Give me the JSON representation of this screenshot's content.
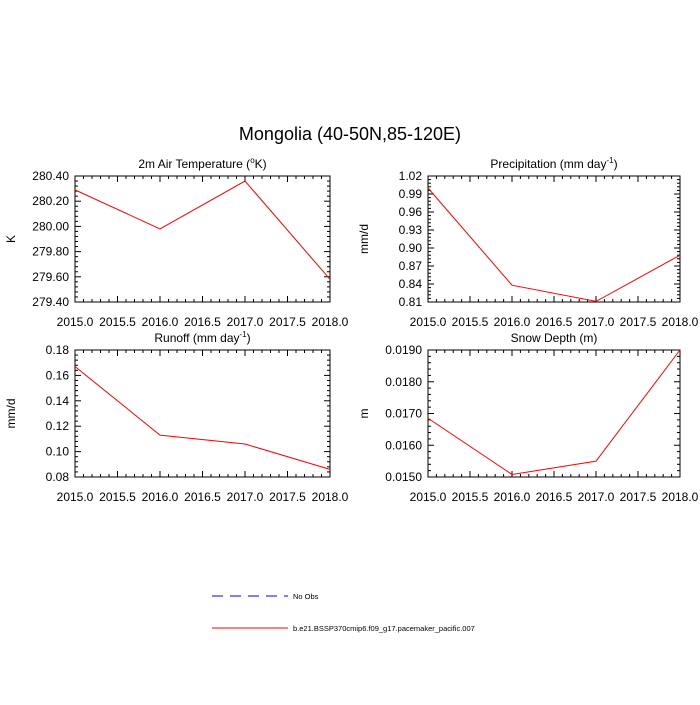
{
  "figure": {
    "title": "Mongolia (40-50N,85-120E)"
  },
  "legend": {
    "entries": [
      {
        "label": "No Obs",
        "color": "#0000ff",
        "style": "dashed"
      },
      {
        "label": "b.e21.BSSP370cmip6.f09_g17.pacemaker_pacific.007",
        "color": "#ff0000",
        "style": "solid"
      }
    ]
  },
  "chart_data": [
    {
      "type": "line",
      "title": "2m Air Temperature (",
      "title_sup": "o",
      "title_tail": "K)",
      "ylabel": "K",
      "x": [
        2015.0,
        2016.0,
        2017.0,
        2018.0
      ],
      "series": [
        {
          "values": [
            280.29,
            279.98,
            280.36,
            279.58
          ],
          "color": "#ff0000"
        }
      ],
      "xlim": [
        2015.0,
        2018.0
      ],
      "ylim": [
        279.4,
        280.4
      ],
      "xticks": [
        2015.0,
        2015.5,
        2016.0,
        2016.5,
        2017.0,
        2017.5,
        2018.0
      ],
      "xticklabels": [
        "2015.0",
        "2015.5",
        "2016.0",
        "2016.5",
        "2017.0",
        "2017.5",
        "2018.0"
      ],
      "yticks": [
        279.4,
        279.6,
        279.8,
        280.0,
        280.2,
        280.4
      ],
      "yticklabels": [
        "279.40",
        "279.60",
        "279.80",
        "280.00",
        "280.20",
        "280.40"
      ],
      "grid": false
    },
    {
      "type": "line",
      "title": "Precipitation (mm day",
      "title_sup": "-1",
      "title_tail": ")",
      "ylabel": "mm/d",
      "x": [
        2015.0,
        2016.0,
        2017.0,
        2018.0
      ],
      "series": [
        {
          "values": [
            1.0,
            0.838,
            0.811,
            0.888
          ],
          "color": "#ff0000"
        }
      ],
      "xlim": [
        2015.0,
        2018.0
      ],
      "ylim": [
        0.81,
        1.02
      ],
      "xticks": [
        2015.0,
        2015.5,
        2016.0,
        2016.5,
        2017.0,
        2017.5,
        2018.0
      ],
      "xticklabels": [
        "2015.0",
        "2015.5",
        "2016.0",
        "2016.5",
        "2017.0",
        "2017.5",
        "2018.0"
      ],
      "yticks": [
        0.81,
        0.84,
        0.87,
        0.9,
        0.93,
        0.96,
        0.99,
        1.02
      ],
      "yticklabels": [
        "0.81",
        "0.84",
        "0.87",
        "0.90",
        "0.93",
        "0.96",
        "0.99",
        "1.02"
      ],
      "grid": false
    },
    {
      "type": "line",
      "title": "Runoff (mm day",
      "title_sup": "-1",
      "title_tail": ")",
      "ylabel": "mm/d",
      "x": [
        2015.0,
        2016.0,
        2017.0,
        2018.0
      ],
      "series": [
        {
          "values": [
            0.167,
            0.113,
            0.106,
            0.086
          ],
          "color": "#ff0000"
        }
      ],
      "xlim": [
        2015.0,
        2018.0
      ],
      "ylim": [
        0.08,
        0.18
      ],
      "xticks": [
        2015.0,
        2015.5,
        2016.0,
        2016.5,
        2017.0,
        2017.5,
        2018.0
      ],
      "xticklabels": [
        "2015.0",
        "2015.5",
        "2016.0",
        "2016.5",
        "2017.0",
        "2017.5",
        "2018.0"
      ],
      "yticks": [
        0.08,
        0.1,
        0.12,
        0.14,
        0.16,
        0.18
      ],
      "yticklabels": [
        "0.08",
        "0.10",
        "0.12",
        "0.14",
        "0.16",
        "0.18"
      ],
      "grid": false
    },
    {
      "type": "line",
      "title": "Snow Depth (m)",
      "title_sup": "",
      "title_tail": "",
      "ylabel": "m",
      "x": [
        2015.0,
        2016.0,
        2017.0,
        2018.0
      ],
      "series": [
        {
          "values": [
            0.01685,
            0.01508,
            0.0155,
            0.019
          ],
          "color": "#ff0000"
        }
      ],
      "xlim": [
        2015.0,
        2018.0
      ],
      "ylim": [
        0.015,
        0.019
      ],
      "xticks": [
        2015.0,
        2015.5,
        2016.0,
        2016.5,
        2017.0,
        2017.5,
        2018.0
      ],
      "xticklabels": [
        "2015.0",
        "2015.5",
        "2016.0",
        "2016.5",
        "2017.0",
        "2017.5",
        "2018.0"
      ],
      "yticks": [
        0.015,
        0.016,
        0.017,
        0.018,
        0.019
      ],
      "yticklabels": [
        "0.0150",
        "0.0160",
        "0.0170",
        "0.0180",
        "0.0190"
      ],
      "grid": false
    }
  ]
}
